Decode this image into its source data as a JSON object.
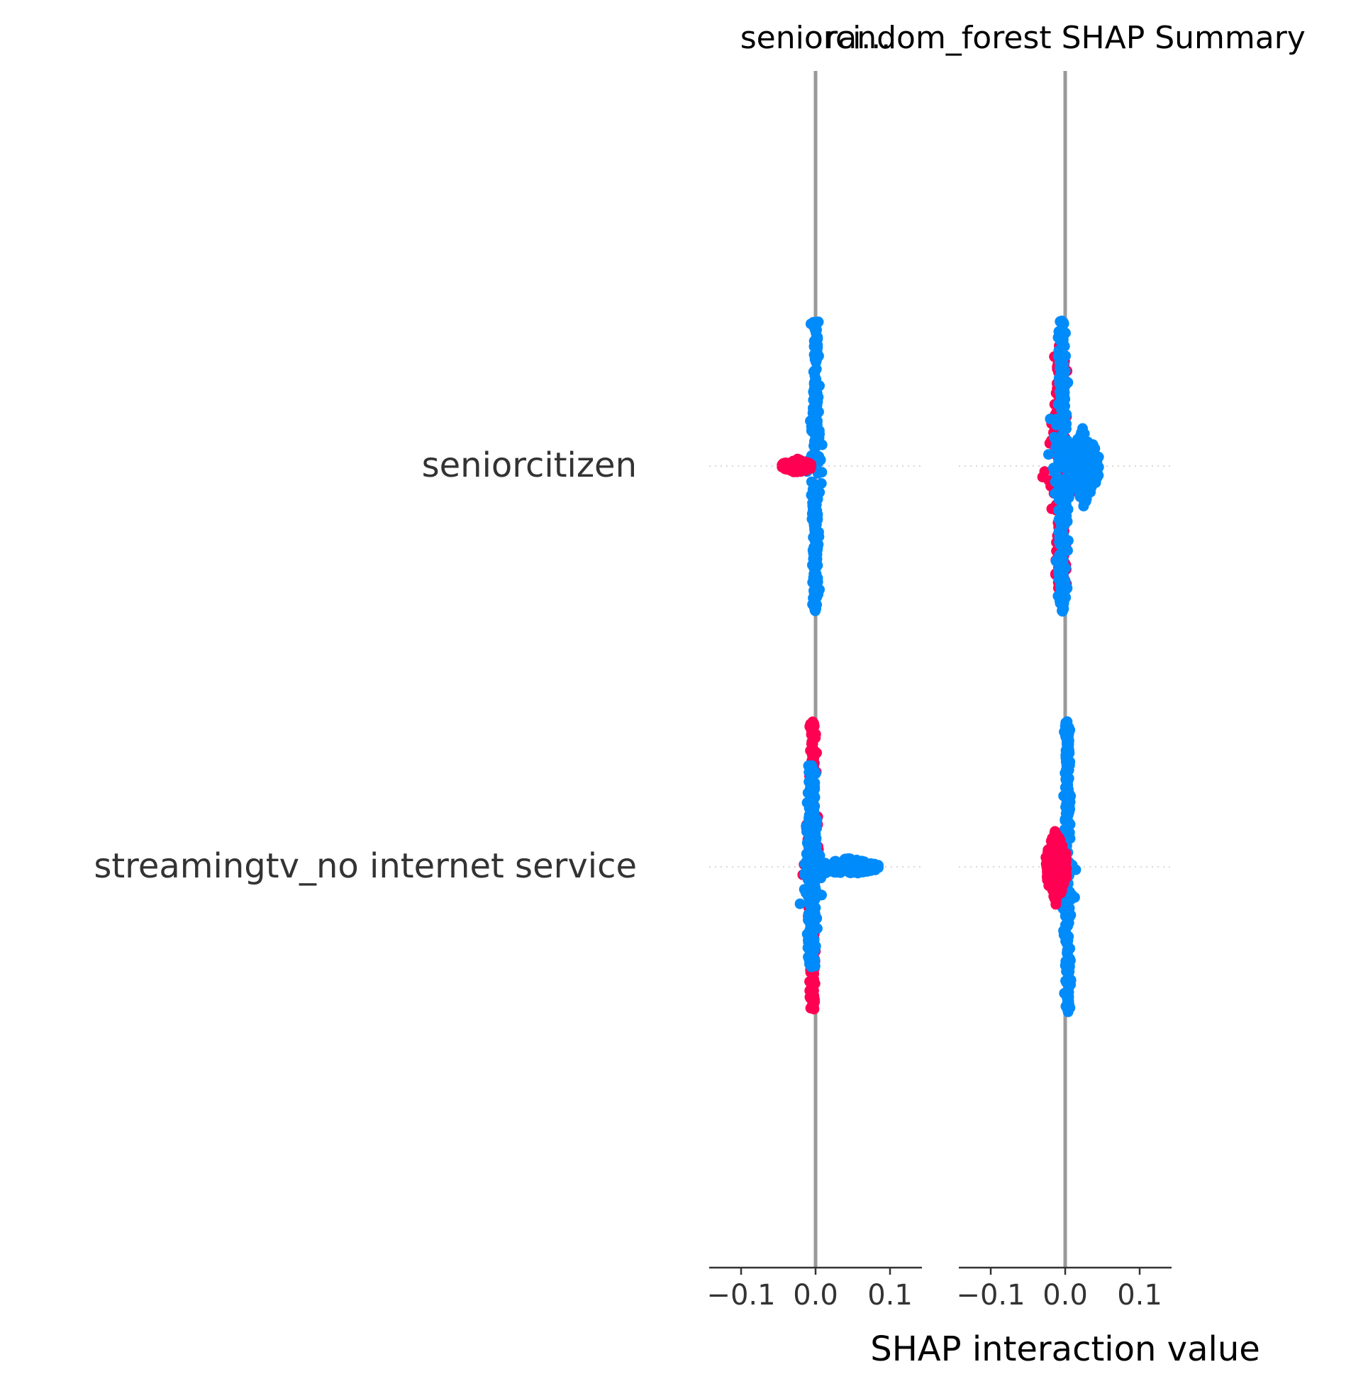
{
  "chart_data": [
    {
      "type": "scatter",
      "subtype": "shap-interaction-beeswarm",
      "title": "seniorci...",
      "features": [
        "streamingtv_no internet service",
        "seniorcitizen"
      ],
      "xticks": [
        -0.1,
        0.0,
        0.1
      ],
      "xtick_labels": [
        "−0.1",
        "0.0",
        "0.1"
      ],
      "xlim": [
        -0.145,
        0.145
      ],
      "rows": [
        {
          "feature": "seniorcitizen",
          "blobs": [
            {
              "color": "blue",
              "x_center": 0.0,
              "x_halfwidth": 0.004,
              "y_halfspread": 1.0
            },
            {
              "color": "red",
              "x_center": -0.025,
              "x_halfwidth": 0.02,
              "y_halfspread": 0.05
            }
          ]
        },
        {
          "feature": "streamingtv_no internet service",
          "blobs": [
            {
              "color": "red",
              "x_center": -0.004,
              "x_halfwidth": 0.004,
              "y_halfspread": 1.0
            },
            {
              "color": "blue",
              "x_center": -0.005,
              "x_halfwidth": 0.006,
              "y_halfspread": 0.7
            },
            {
              "color": "blue",
              "x_center": 0.045,
              "x_halfwidth": 0.04,
              "y_halfspread": 0.06
            }
          ]
        }
      ]
    },
    {
      "type": "scatter",
      "subtype": "shap-interaction-beeswarm",
      "title": "random_forest SHAP Summary",
      "features": [
        "streamingtv_no internet service",
        "seniorcitizen"
      ],
      "xticks": [
        -0.1,
        0.0,
        0.1
      ],
      "xtick_labels": [
        "−0.1",
        "0.0",
        "0.1"
      ],
      "xlim": [
        -0.145,
        0.145
      ],
      "xlabel": "SHAP interaction value",
      "rows": [
        {
          "feature": "seniorcitizen",
          "blobs": [
            {
              "color": "red",
              "x_center": -0.006,
              "x_halfwidth": 0.008,
              "y_halfspread": 0.85
            },
            {
              "color": "blue",
              "x_center": -0.004,
              "x_halfwidth": 0.006,
              "y_halfspread": 1.0
            },
            {
              "color": "blue",
              "x_center": 0.025,
              "x_halfwidth": 0.02,
              "y_halfspread": 0.28
            }
          ]
        },
        {
          "feature": "streamingtv_no internet service",
          "blobs": [
            {
              "color": "blue",
              "x_center": 0.003,
              "x_halfwidth": 0.004,
              "y_halfspread": 1.0
            },
            {
              "color": "red",
              "x_center": -0.012,
              "x_halfwidth": 0.014,
              "y_halfspread": 0.27
            }
          ]
        }
      ]
    }
  ],
  "colors": {
    "high": "#ff0052",
    "low": "#008bfb",
    "zero_line": "#999999",
    "axis": "#333333",
    "text": "#333333"
  }
}
